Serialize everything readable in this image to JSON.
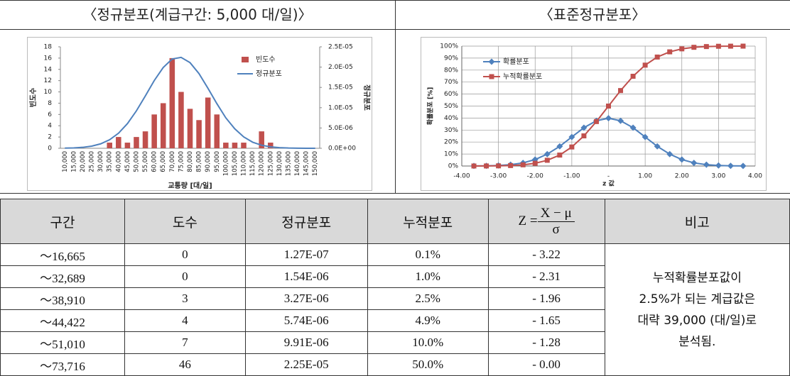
{
  "panels": [
    {
      "title": "〈정규분포(계급구간: 5,000 대/일)〉"
    },
    {
      "title": "〈표준정규분포〉"
    }
  ],
  "chart_data": [
    {
      "type": "bar",
      "x_label": "교통량 [대/일]",
      "y_label": "빈도수",
      "y2_label": "정규분포",
      "categories": [
        "10,000",
        "15,000",
        "20,000",
        "25,000",
        "30,000",
        "35,000",
        "40,000",
        "45,000",
        "50,000",
        "55,000",
        "60,000",
        "65,000",
        "70,000",
        "75,000",
        "80,000",
        "85,000",
        "90,000",
        "95,000",
        "100,000",
        "105,000",
        "110,000",
        "115,000",
        "120,000",
        "125,000",
        "130,000",
        "135,000",
        "140,000",
        "145,000",
        "150,000"
      ],
      "series": [
        {
          "name": "빈도수",
          "color": "#c0504d",
          "values": [
            0,
            0,
            0,
            0,
            0,
            1,
            2,
            1,
            2,
            3,
            6,
            8,
            16,
            10,
            7,
            5,
            9,
            6,
            1,
            1,
            1,
            0,
            3,
            1,
            0,
            0,
            0,
            0,
            0
          ]
        },
        {
          "name": "정규분포",
          "color": "#4f81bd",
          "type": "line",
          "axis": "y2",
          "values": [
            3.6e-08,
            9.5e-08,
            2.3e-07,
            5.2e-07,
            1.09e-06,
            2.09e-06,
            3.71e-06,
            6.08e-06,
            9.22e-06,
            1.29e-05,
            1.67e-05,
            1.99e-05,
            2.2e-05,
            2.24e-05,
            2.11e-05,
            1.84e-05,
            1.48e-05,
            1.1e-05,
            7.5e-06,
            4.8e-06,
            2.8e-06,
            1.5e-06,
            7.5e-07,
            3.5e-07,
            1.5e-07,
            6e-08,
            2e-08,
            1e-08,
            0
          ]
        }
      ],
      "ylim": [
        0,
        18
      ],
      "yticks": [
        0,
        2,
        4,
        6,
        8,
        10,
        12,
        14,
        16,
        18
      ],
      "y2lim": [
        0,
        2.5e-05
      ],
      "y2ticks": [
        {
          "value": 0,
          "label": "0.0E+00"
        },
        {
          "value": 5e-06,
          "label": "5.0E-06"
        },
        {
          "value": 1e-05,
          "label": "1.0E-05"
        },
        {
          "value": 1.5e-05,
          "label": "1.5E-05"
        },
        {
          "value": 2e-05,
          "label": "2.0E-05"
        },
        {
          "value": 2.5e-05,
          "label": "2.5E-05"
        }
      ],
      "legend": "right",
      "grid": false
    },
    {
      "type": "line",
      "x_label": "z 값",
      "y_label": "확률분포 [%]",
      "x": [
        -3.67,
        -3.33,
        -3,
        -2.67,
        -2.33,
        -2,
        -1.67,
        -1.33,
        -1,
        -0.67,
        -0.33,
        0,
        0.33,
        0.67,
        1,
        1.33,
        1.67,
        2,
        2.33,
        2.67,
        3,
        3.33,
        3.67
      ],
      "series": [
        {
          "name": "확률분포",
          "color": "#4f81bd",
          "marker": "diamond",
          "values": [
            0.05,
            0.15,
            0.44,
            1.14,
            2.62,
            5.4,
            9.94,
            16.4,
            24.2,
            31.94,
            37.74,
            39.89,
            37.74,
            31.94,
            24.2,
            16.4,
            9.94,
            5.4,
            2.62,
            1.14,
            0.44,
            0.15,
            0.05
          ]
        },
        {
          "name": "누적확률분포",
          "color": "#c0504d",
          "marker": "square",
          "values": [
            0.01,
            0.04,
            0.13,
            0.38,
            0.99,
            2.28,
            4.78,
            9.12,
            15.87,
            25.14,
            37.07,
            50,
            62.93,
            74.86,
            84.13,
            90.88,
            95.22,
            97.72,
            99.01,
            99.62,
            99.87,
            99.96,
            99.99
          ]
        }
      ],
      "xlim": [
        -4,
        4
      ],
      "xticks": [
        {
          "value": -4,
          "label": "-4.00"
        },
        {
          "value": -3,
          "label": "-3.00"
        },
        {
          "value": -2,
          "label": "-2.00"
        },
        {
          "value": -1,
          "label": "-1.00"
        },
        {
          "value": 0,
          "label": "-"
        },
        {
          "value": 1,
          "label": "1.00"
        },
        {
          "value": 2,
          "label": "2.00"
        },
        {
          "value": 3,
          "label": "3.00"
        },
        {
          "value": 4,
          "label": "4.00"
        }
      ],
      "ylim": [
        0,
        100
      ],
      "yticks": [
        {
          "value": 0,
          "label": "0%"
        },
        {
          "value": 10,
          "label": "10%"
        },
        {
          "value": 20,
          "label": "20%"
        },
        {
          "value": 30,
          "label": "30%"
        },
        {
          "value": 40,
          "label": "40%"
        },
        {
          "value": 50,
          "label": "50%"
        },
        {
          "value": 60,
          "label": "60%"
        },
        {
          "value": 70,
          "label": "70%"
        },
        {
          "value": 80,
          "label": "80%"
        },
        {
          "value": 90,
          "label": "90%"
        },
        {
          "value": 100,
          "label": "100%"
        }
      ],
      "legend": "upper left",
      "grid": true
    }
  ],
  "table": {
    "columns": [
      "구간",
      "도수",
      "정규분포",
      "누적분포",
      {
        "lhs": "Z =",
        "numerator": "X − μ",
        "denominator": "σ"
      },
      "비고"
    ],
    "rows": [
      [
        "～16,665",
        "0",
        "1.27E-07",
        "0.1%",
        "- 3.22"
      ],
      [
        "～32,689",
        "0",
        "1.54E-06",
        "1.0%",
        "- 2.31"
      ],
      [
        "～38,910",
        "3",
        "3.27E-06",
        "2.5%",
        "- 1.96"
      ],
      [
        "～44,422",
        "4",
        "5.74E-06",
        "4.9%",
        "- 1.65"
      ],
      [
        "～51,010",
        "7",
        "9.91E-06",
        "10.0%",
        "- 1.28"
      ],
      [
        "～73,716",
        "46",
        "2.25E-05",
        "50.0%",
        "- 0.00"
      ]
    ],
    "note": [
      "누적확률분포값이",
      "2.5%가 되는 계급값은",
      "대략 39,000 (대/일)로",
      "분석됨."
    ]
  }
}
